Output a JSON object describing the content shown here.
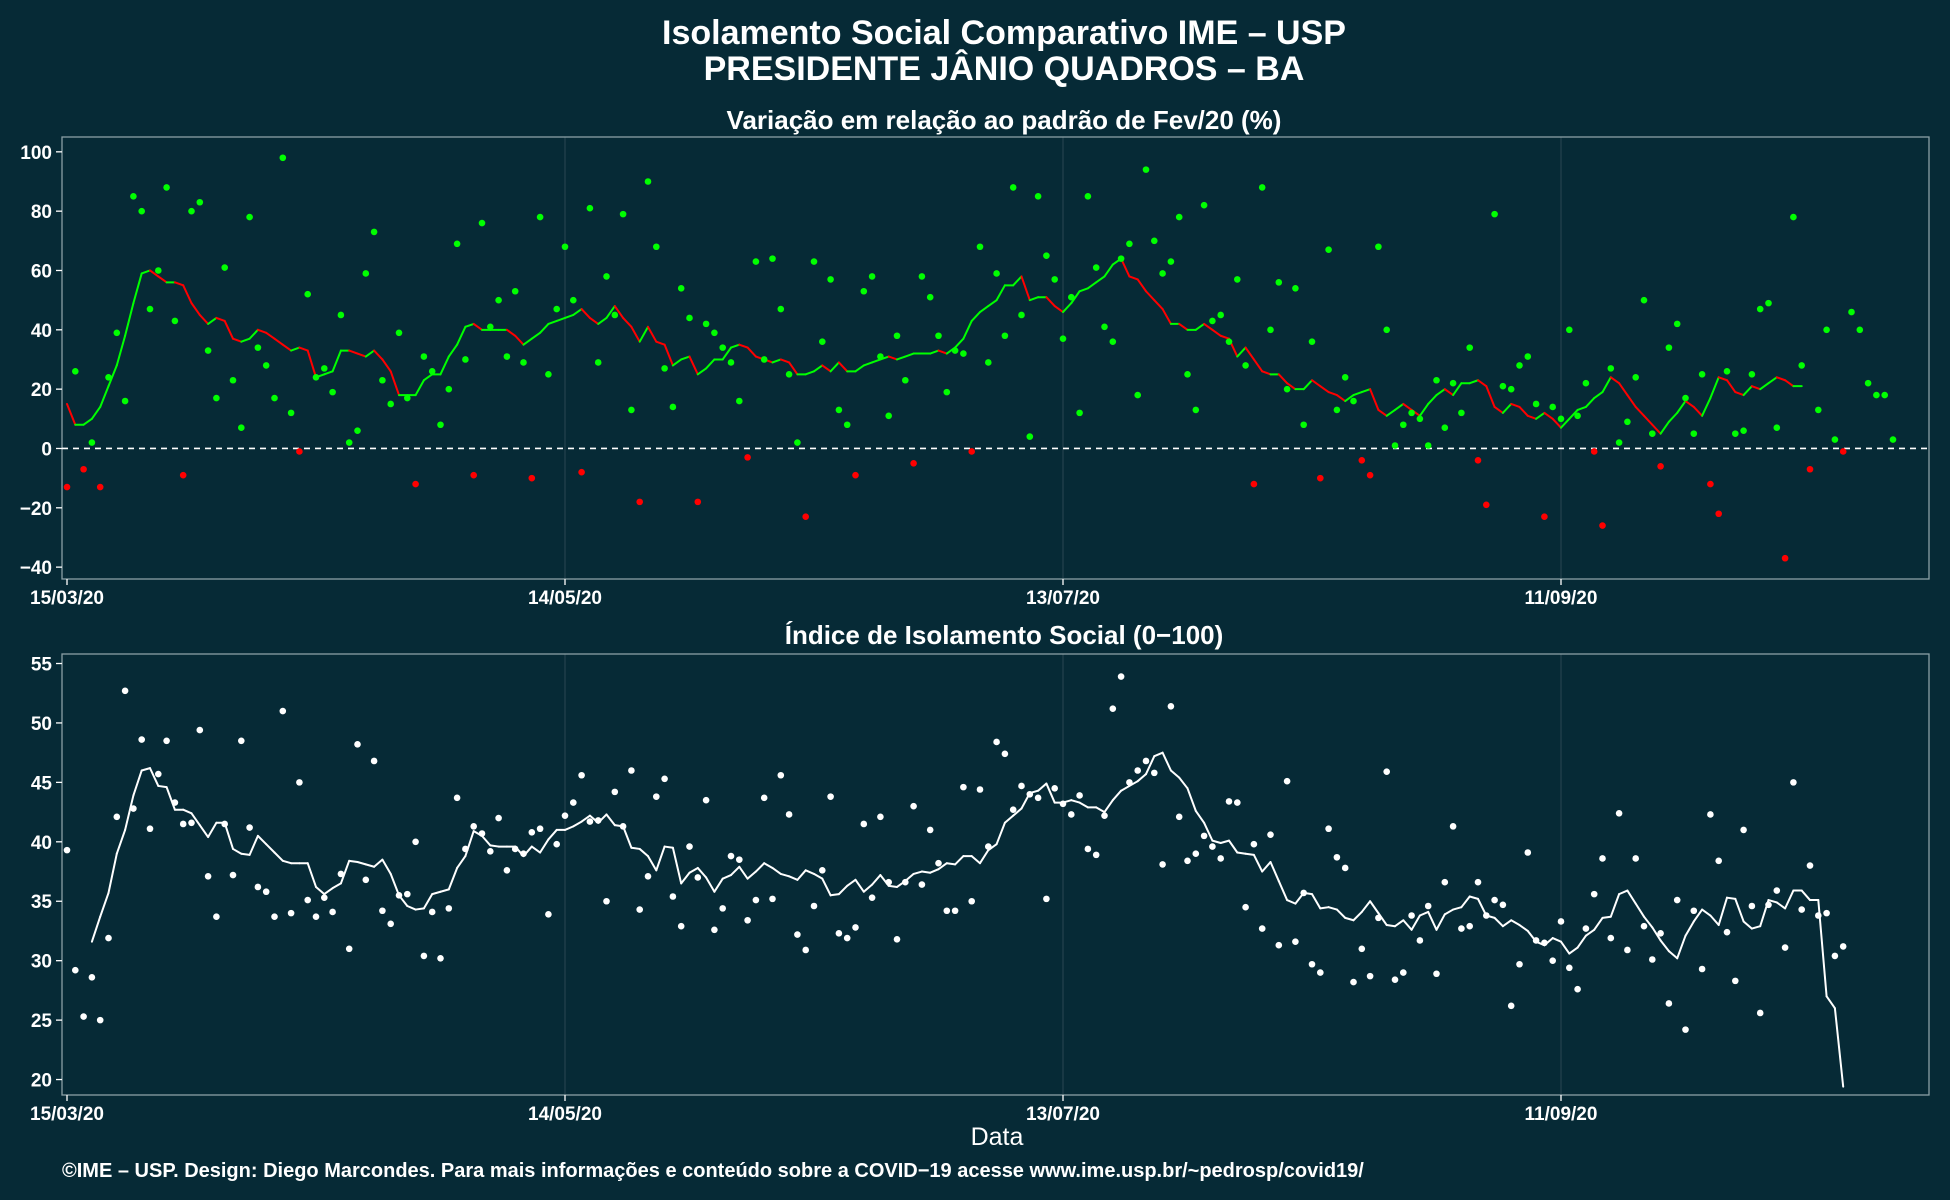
{
  "header": {
    "title_line1": "Isolamento Social Comparativo IME – USP",
    "title_line2": "PRESIDENTE JÂNIO QUADROS – BA"
  },
  "footer": {
    "xlabel": "Data",
    "caption": "©IME – USP. Design: Diego Marcondes. Para mais informações e conteúdo sobre a COVID−19 acesse www.ime.usp.br/~pedrosp/covid19/"
  },
  "colors": {
    "background": "#062a36",
    "panel_border": "#8aa0a6",
    "grid": "#24424d",
    "positive": "#00ff00",
    "negative": "#ff0000",
    "index": "#ffffff"
  },
  "chart_data": [
    {
      "type": "scatter",
      "title": "Variação em relação ao padrão de Fev/20 (%)",
      "xlabel": "",
      "ylabel": "",
      "x_start": "15/03/20",
      "x_tick_labels": [
        "15/03/20",
        "14/05/20",
        "13/07/20",
        "11/09/20"
      ],
      "x_tick_day_offsets": [
        0,
        60,
        120,
        180
      ],
      "x_range_days": [
        0,
        224
      ],
      "ylim": [
        -44,
        105
      ],
      "y_ticks": [
        -40,
        -20,
        0,
        20,
        40,
        60,
        80,
        100
      ],
      "reference_line": 0,
      "grid": true,
      "series": [
        {
          "kind": "points",
          "values": [
            -13,
            26,
            -7,
            2,
            -13,
            24,
            39,
            16,
            85,
            80,
            47,
            60,
            88,
            43,
            -9,
            80,
            83,
            33,
            17,
            61,
            23,
            7,
            78,
            34,
            28,
            17,
            98,
            12,
            -1,
            52,
            24,
            27,
            19,
            45,
            2,
            6,
            59,
            73,
            23,
            15,
            39,
            17,
            -12,
            31,
            26,
            8,
            20,
            69,
            30,
            -9,
            76,
            41,
            50,
            31,
            53,
            29,
            -10,
            78,
            25,
            47,
            68,
            50,
            -8,
            81,
            29,
            58,
            45,
            79,
            13,
            -18,
            90,
            68,
            27,
            14,
            54,
            44,
            -18,
            42,
            39,
            34,
            29,
            16,
            -3,
            63,
            30,
            64,
            47,
            25,
            2,
            -23,
            63,
            36,
            57,
            13,
            8,
            -9,
            53,
            58,
            31,
            11,
            38,
            23,
            -5,
            58,
            51,
            38,
            19,
            33,
            32,
            -1,
            68,
            29,
            59,
            38,
            88,
            45,
            4,
            85,
            65,
            57,
            37,
            51,
            12,
            85,
            61,
            41,
            36,
            64,
            69,
            18,
            94,
            70,
            59,
            63,
            78,
            25,
            13,
            82,
            43,
            45,
            36,
            57,
            28,
            -12,
            88,
            40,
            56,
            20,
            54,
            8,
            36,
            -10,
            67,
            13,
            24,
            16,
            -4,
            -9,
            68,
            40,
            1,
            8,
            12,
            10,
            1,
            23,
            7,
            22,
            12,
            34,
            -4,
            -19,
            79,
            21,
            20,
            28,
            31,
            15,
            -23,
            14,
            10,
            40,
            11,
            22,
            -1,
            -26,
            27,
            2,
            9,
            24,
            50,
            5,
            -6,
            34,
            42,
            17,
            5,
            25,
            -12,
            -22,
            26,
            5,
            6,
            25,
            47,
            49,
            7,
            -37,
            78,
            28,
            -7,
            13,
            40,
            3,
            -1,
            46,
            40,
            22,
            18,
            18,
            3
          ]
        },
        {
          "kind": "moving_average",
          "values": [
            15,
            8,
            8,
            10,
            14,
            21,
            28,
            38,
            49,
            59,
            60,
            58,
            56,
            56,
            55,
            49,
            45,
            42,
            44,
            43,
            37,
            36,
            37,
            40,
            39,
            37,
            35,
            33,
            34,
            33,
            24,
            25,
            26,
            33,
            33,
            32,
            31,
            33,
            30,
            26,
            18,
            18,
            18,
            23,
            25,
            25,
            31,
            35,
            41,
            42,
            40,
            40,
            40,
            40,
            38,
            35,
            37,
            39,
            42,
            43,
            44,
            45,
            47,
            44,
            42,
            44,
            48,
            44,
            41,
            36,
            41,
            36,
            35,
            28,
            30,
            31,
            25,
            27,
            30,
            30,
            34,
            35,
            34,
            31,
            30,
            29,
            30,
            29,
            25,
            25,
            26,
            28,
            26,
            29,
            26,
            26,
            28,
            29,
            30,
            31,
            30,
            31,
            32,
            32,
            32,
            33,
            32,
            34,
            37,
            43,
            46,
            48,
            50,
            55,
            55,
            58,
            50,
            51,
            51,
            48,
            46,
            49,
            53,
            54,
            56,
            58,
            62,
            64,
            58,
            57,
            53,
            50,
            47,
            42,
            42,
            40,
            40,
            42,
            40,
            38,
            37,
            31,
            34,
            30,
            26,
            25,
            25,
            22,
            20,
            20,
            23,
            21,
            19,
            18,
            16,
            18,
            19,
            20,
            13,
            11,
            13,
            15,
            13,
            11,
            15,
            18,
            20,
            18,
            22,
            22,
            23,
            21,
            14,
            12,
            15,
            14,
            11,
            10,
            12,
            10,
            7,
            10,
            13,
            14,
            17,
            19,
            24,
            22,
            18,
            14,
            11,
            8,
            5,
            9,
            12,
            16,
            14,
            11,
            17,
            24,
            23,
            19,
            18,
            21,
            20,
            22,
            24,
            23,
            21,
            21
          ]
        }
      ]
    },
    {
      "type": "scatter",
      "title": "Índice de Isolamento Social (0−100)",
      "xlabel": "Data",
      "ylabel": "",
      "x_start": "15/03/20",
      "x_tick_labels": [
        "15/03/20",
        "14/05/20",
        "13/07/20",
        "11/09/20"
      ],
      "x_tick_day_offsets": [
        0,
        60,
        120,
        180
      ],
      "x_range_days": [
        0,
        224
      ],
      "ylim": [
        18.7,
        55.8
      ],
      "y_ticks": [
        20,
        25,
        30,
        35,
        40,
        45,
        50,
        55
      ],
      "grid": true,
      "series": [
        {
          "kind": "points",
          "values": [
            39.3,
            29.2,
            25.3,
            28.6,
            25.0,
            31.9,
            42.1,
            52.7,
            42.8,
            48.6,
            41.1,
            45.7,
            48.5,
            43.3,
            41.5,
            41.6,
            49.4,
            37.1,
            33.7,
            41.5,
            37.2,
            48.5,
            41.2,
            36.2,
            35.8,
            33.7,
            51.0,
            34.0,
            45.0,
            35.1,
            33.7,
            35.3,
            34.1,
            37.3,
            31.0,
            48.2,
            36.8,
            46.8,
            34.2,
            33.1,
            35.5,
            35.6,
            40.0,
            30.4,
            34.1,
            30.2,
            34.4,
            43.7,
            39.4,
            41.3,
            40.7,
            39.2,
            42.0,
            37.6,
            39.4,
            39.0,
            40.8,
            41.1,
            33.9,
            39.8,
            42.2,
            43.3,
            45.6,
            41.7,
            41.8,
            35.0,
            44.2,
            41.3,
            46.0,
            34.3,
            37.1,
            43.8,
            45.3,
            35.4,
            32.9,
            39.6,
            37.0,
            43.5,
            32.6,
            34.4,
            38.8,
            38.5,
            33.4,
            35.1,
            43.7,
            35.2,
            45.6,
            42.3,
            32.2,
            30.9,
            34.6,
            37.6,
            43.8,
            32.3,
            31.9,
            32.8,
            41.5,
            35.3,
            42.1,
            36.6,
            31.8,
            36.6,
            43.0,
            36.4,
            41.0,
            38.2,
            34.2,
            34.2,
            44.6,
            35.0,
            44.4,
            39.6,
            48.4,
            47.4,
            42.7,
            44.7,
            44.0,
            43.7,
            35.2,
            44.5,
            43.2,
            42.3,
            43.9,
            39.4,
            38.9,
            42.2,
            51.2,
            53.9,
            45.0,
            46.0,
            46.8,
            45.8,
            38.1,
            51.4,
            42.1,
            38.4,
            39.0,
            40.5,
            39.6,
            38.6,
            43.4,
            43.3,
            34.5,
            39.8,
            32.7,
            40.6,
            31.3,
            45.1,
            31.6,
            35.7,
            29.7,
            29.0,
            41.1,
            38.7,
            37.8,
            28.2,
            31.0,
            28.7,
            33.6,
            45.9,
            28.4,
            29.0,
            33.8,
            31.7,
            34.6,
            28.9,
            36.6,
            41.3,
            32.7,
            32.9,
            36.6,
            33.8,
            35.1,
            34.7,
            26.2,
            29.7,
            39.1,
            31.7,
            31.5,
            30.0,
            33.3,
            29.4,
            27.6,
            32.7,
            35.6,
            38.6,
            31.9,
            42.4,
            30.9,
            38.6,
            32.9,
            30.1,
            32.3,
            26.4,
            35.1,
            24.2,
            34.2,
            29.3,
            42.3,
            38.4,
            32.4,
            28.3,
            41.0,
            34.6,
            25.6,
            34.7,
            35.9,
            31.1,
            45.0,
            34.3,
            38.0,
            33.8,
            34.0,
            30.4,
            31.2
          ]
        },
        {
          "kind": "moving_average",
          "values": [
            null,
            null,
            null,
            31.6,
            33.7,
            35.7,
            39.0,
            41.0,
            43.9,
            46.0,
            46.2,
            44.7,
            44.6,
            42.7,
            42.7,
            42.4,
            41.4,
            40.4,
            41.6,
            41.6,
            39.4,
            39.0,
            38.9,
            40.5,
            39.8,
            39.1,
            38.4,
            38.2,
            38.2,
            38.2,
            36.2,
            35.6,
            36.1,
            36.5,
            38.4,
            38.3,
            38.1,
            37.9,
            38.5,
            37.3,
            35.5,
            34.6,
            34.3,
            34.4,
            35.6,
            35.8,
            36.0,
            37.8,
            38.8,
            40.9,
            40.5,
            39.7,
            39.6,
            39.6,
            39.6,
            38.8,
            39.6,
            39.1,
            40.2,
            41.0,
            41.0,
            41.3,
            41.7,
            42.2,
            41.6,
            42.3,
            41.4,
            41.3,
            39.5,
            39.4,
            38.8,
            37.6,
            39.6,
            39.5,
            36.5,
            37.4,
            37.8,
            37.0,
            35.8,
            36.9,
            37.2,
            37.9,
            36.9,
            37.5,
            38.2,
            37.8,
            37.3,
            37.1,
            36.8,
            37.6,
            37.3,
            36.9,
            35.5,
            35.6,
            36.3,
            36.8,
            35.8,
            36.4,
            37.2,
            36.3,
            36.2,
            36.7,
            37.3,
            37.5,
            37.4,
            37.7,
            38.2,
            38.1,
            38.8,
            38.8,
            38.2,
            39.3,
            39.8,
            41.6,
            42.2,
            42.8,
            44.1,
            44.3,
            44.9,
            43.3,
            43.3,
            43.5,
            43.3,
            42.9,
            42.9,
            42.5,
            43.5,
            44.3,
            44.7,
            45.1,
            45.7,
            47.2,
            47.5,
            46.0,
            45.4,
            44.5,
            42.6,
            41.6,
            40.1,
            39.9,
            40.1,
            39.1,
            39.0,
            38.9,
            37.5,
            38.3,
            36.7,
            35.1,
            34.8,
            35.7,
            35.6,
            34.4,
            34.5,
            34.3,
            33.6,
            33.4,
            34.1,
            35.0,
            34.0,
            33.0,
            32.9,
            33.4,
            32.6,
            33.8,
            34.1,
            32.6,
            33.9,
            34.3,
            34.5,
            35.4,
            35.2,
            33.8,
            33.6,
            32.9,
            33.4,
            33.0,
            32.5,
            31.6,
            31.3,
            31.9,
            31.6,
            30.6,
            31.1,
            32.1,
            32.6,
            33.6,
            33.7,
            35.6,
            35.9,
            34.8,
            33.7,
            32.8,
            31.7,
            30.8,
            30.2,
            32.1,
            33.3,
            34.3,
            33.8,
            33.0,
            35.3,
            35.2,
            33.3,
            32.7,
            32.9,
            35.1,
            34.9,
            34.4,
            35.9,
            35.9,
            35.1,
            35.1,
            27.0,
            26.0,
            19.4
          ]
        }
      ]
    }
  ]
}
